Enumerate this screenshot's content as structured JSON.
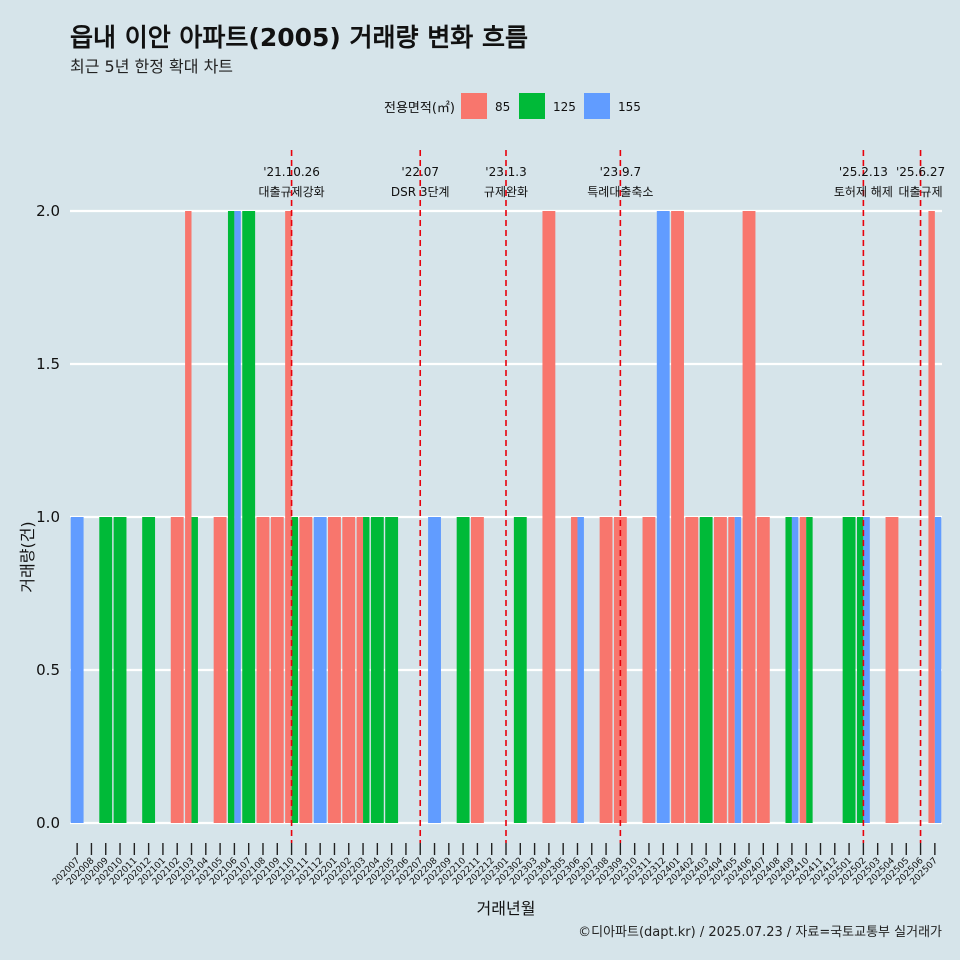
{
  "title": "읍내 이안 아파트(2005) 거래량 변화 흐름",
  "subtitle": "최근 5년 한정 확대 차트",
  "caption": "©디아파트(dapt.kr) / 2025.07.23 / 자료=국토교통부 실거래가",
  "colors": {
    "background": "#d6e4ea",
    "85": "#f8766d",
    "125": "#00ba38",
    "155": "#619cff",
    "event_line": "#e8000b"
  },
  "chart_data": {
    "type": "bar",
    "position": "dodge",
    "xlabel": "거래년월",
    "ylabel": "거래량(건)",
    "ylim": [
      0,
      2
    ],
    "yticks": [
      0.0,
      0.5,
      1.0,
      1.5,
      2.0
    ],
    "ytick_labels": [
      "0.0",
      "0.5",
      "1.0",
      "1.5",
      "2.0"
    ],
    "legend": {
      "title": "전용면적(㎡)",
      "placement": "top",
      "entries": [
        "85",
        "125",
        "155"
      ]
    },
    "categories": [
      "202007",
      "202008",
      "202009",
      "202010",
      "202011",
      "202012",
      "202101",
      "202102",
      "202103",
      "202104",
      "202105",
      "202106",
      "202107",
      "202108",
      "202109",
      "202110",
      "202111",
      "202112",
      "202201",
      "202202",
      "202203",
      "202204",
      "202205",
      "202206",
      "202207",
      "202208",
      "202209",
      "202210",
      "202211",
      "202212",
      "202301",
      "202302",
      "202303",
      "202304",
      "202305",
      "202306",
      "202307",
      "202308",
      "202309",
      "202310",
      "202311",
      "202312",
      "202401",
      "202402",
      "202403",
      "202404",
      "202405",
      "202406",
      "202407",
      "202408",
      "202409",
      "202410",
      "202411",
      "202412",
      "202501",
      "202502",
      "202503",
      "202504",
      "202505",
      "202506",
      "202507"
    ],
    "bars": [
      {
        "month": "202007",
        "groups": [
          {
            "area": "155",
            "value": 1
          }
        ]
      },
      {
        "month": "202009",
        "groups": [
          {
            "area": "125",
            "value": 1
          }
        ]
      },
      {
        "month": "202010",
        "groups": [
          {
            "area": "125",
            "value": 1
          }
        ]
      },
      {
        "month": "202012",
        "groups": [
          {
            "area": "125",
            "value": 1
          }
        ]
      },
      {
        "month": "202102",
        "groups": [
          {
            "area": "85",
            "value": 1
          }
        ]
      },
      {
        "month": "202103",
        "groups": [
          {
            "area": "85",
            "value": 2
          },
          {
            "area": "125",
            "value": 1
          }
        ]
      },
      {
        "month": "202105",
        "groups": [
          {
            "area": "85",
            "value": 1
          }
        ]
      },
      {
        "month": "202106",
        "groups": [
          {
            "area": "125",
            "value": 2
          },
          {
            "area": "155",
            "value": 2
          }
        ]
      },
      {
        "month": "202107",
        "groups": [
          {
            "area": "125",
            "value": 2
          }
        ]
      },
      {
        "month": "202108",
        "groups": [
          {
            "area": "85",
            "value": 1
          }
        ]
      },
      {
        "month": "202109",
        "groups": [
          {
            "area": "85",
            "value": 1
          }
        ]
      },
      {
        "month": "202110",
        "groups": [
          {
            "area": "85",
            "value": 2
          },
          {
            "area": "125",
            "value": 1
          }
        ]
      },
      {
        "month": "202111",
        "groups": [
          {
            "area": "85",
            "value": 1
          }
        ]
      },
      {
        "month": "202112",
        "groups": [
          {
            "area": "155",
            "value": 1
          }
        ]
      },
      {
        "month": "202201",
        "groups": [
          {
            "area": "85",
            "value": 1
          }
        ]
      },
      {
        "month": "202202",
        "groups": [
          {
            "area": "85",
            "value": 1
          }
        ]
      },
      {
        "month": "202203",
        "groups": [
          {
            "area": "85",
            "value": 1
          },
          {
            "area": "125",
            "value": 1
          }
        ]
      },
      {
        "month": "202204",
        "groups": [
          {
            "area": "125",
            "value": 1
          }
        ]
      },
      {
        "month": "202205",
        "groups": [
          {
            "area": "125",
            "value": 1
          }
        ]
      },
      {
        "month": "202208",
        "groups": [
          {
            "area": "155",
            "value": 1
          }
        ]
      },
      {
        "month": "202210",
        "groups": [
          {
            "area": "125",
            "value": 1
          }
        ]
      },
      {
        "month": "202211",
        "groups": [
          {
            "area": "85",
            "value": 1
          }
        ]
      },
      {
        "month": "202302",
        "groups": [
          {
            "area": "125",
            "value": 1
          }
        ]
      },
      {
        "month": "202304",
        "groups": [
          {
            "area": "85",
            "value": 2
          }
        ]
      },
      {
        "month": "202306",
        "groups": [
          {
            "area": "85",
            "value": 1
          },
          {
            "area": "155",
            "value": 1
          }
        ]
      },
      {
        "month": "202308",
        "groups": [
          {
            "area": "85",
            "value": 1
          }
        ]
      },
      {
        "month": "202309",
        "groups": [
          {
            "area": "85",
            "value": 1
          },
          {
            "area": "85",
            "value": 1
          }
        ]
      },
      {
        "month": "202311",
        "groups": [
          {
            "area": "85",
            "value": 1
          }
        ]
      },
      {
        "month": "202312",
        "groups": [
          {
            "area": "155",
            "value": 2
          }
        ]
      },
      {
        "month": "202401",
        "groups": [
          {
            "area": "85",
            "value": 2
          }
        ]
      },
      {
        "month": "202402",
        "groups": [
          {
            "area": "85",
            "value": 1
          }
        ]
      },
      {
        "month": "202403",
        "groups": [
          {
            "area": "125",
            "value": 1
          }
        ]
      },
      {
        "month": "202404",
        "groups": [
          {
            "area": "85",
            "value": 1
          }
        ]
      },
      {
        "month": "202405",
        "groups": [
          {
            "area": "85",
            "value": 1
          },
          {
            "area": "155",
            "value": 1
          }
        ]
      },
      {
        "month": "202406",
        "groups": [
          {
            "area": "85",
            "value": 2
          }
        ]
      },
      {
        "month": "202407",
        "groups": [
          {
            "area": "85",
            "value": 1
          }
        ]
      },
      {
        "month": "202409",
        "groups": [
          {
            "area": "125",
            "value": 1
          },
          {
            "area": "155",
            "value": 1
          }
        ]
      },
      {
        "month": "202410",
        "groups": [
          {
            "area": "85",
            "value": 1
          },
          {
            "area": "125",
            "value": 1
          }
        ]
      },
      {
        "month": "202501",
        "groups": [
          {
            "area": "125",
            "value": 1
          }
        ]
      },
      {
        "month": "202502",
        "groups": [
          {
            "area": "125",
            "value": 1
          },
          {
            "area": "155",
            "value": 1
          }
        ]
      },
      {
        "month": "202504",
        "groups": [
          {
            "area": "85",
            "value": 1
          }
        ]
      },
      {
        "month": "202507",
        "groups": [
          {
            "area": "85",
            "value": 2
          },
          {
            "area": "155",
            "value": 1
          }
        ]
      }
    ],
    "events": [
      {
        "x": "202110",
        "date": "'21.10.26",
        "label": "대출규제강화"
      },
      {
        "x": "202207",
        "date": "'22.07",
        "label": "DSR 3단계"
      },
      {
        "x": "202301",
        "date": "'23.1.3",
        "label": "규제완화"
      },
      {
        "x": "202309",
        "date": "'23.9.7",
        "label": "특례대출축소"
      },
      {
        "x": "202502",
        "date": "'25.2.13",
        "label": "토허제 해제"
      },
      {
        "x": "202506",
        "date": "'25.6.27",
        "label": "대출규제"
      }
    ]
  }
}
